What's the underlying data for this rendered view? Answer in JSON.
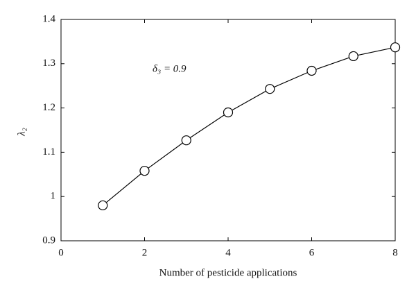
{
  "chart_data": {
    "type": "line",
    "x_label": "Number of pesticide applications",
    "y_label": "λ₂",
    "annotation": "δ₃ = 0.9",
    "x": [
      1,
      2,
      3,
      4,
      5,
      6,
      7,
      8
    ],
    "series": [
      {
        "color": "#000000",
        "values": [
          0.98,
          1.058,
          1.127,
          1.19,
          1.243,
          1.284,
          1.317,
          1.337
        ]
      }
    ],
    "xlim": [
      0,
      8
    ],
    "xticks": [
      0,
      2,
      4,
      6,
      8
    ],
    "ylim": [
      0.9,
      1.4
    ],
    "yticks": [
      0.9,
      1,
      1.1,
      1.2,
      1.3,
      1.4
    ],
    "markers": "open-circle",
    "grid": false
  }
}
